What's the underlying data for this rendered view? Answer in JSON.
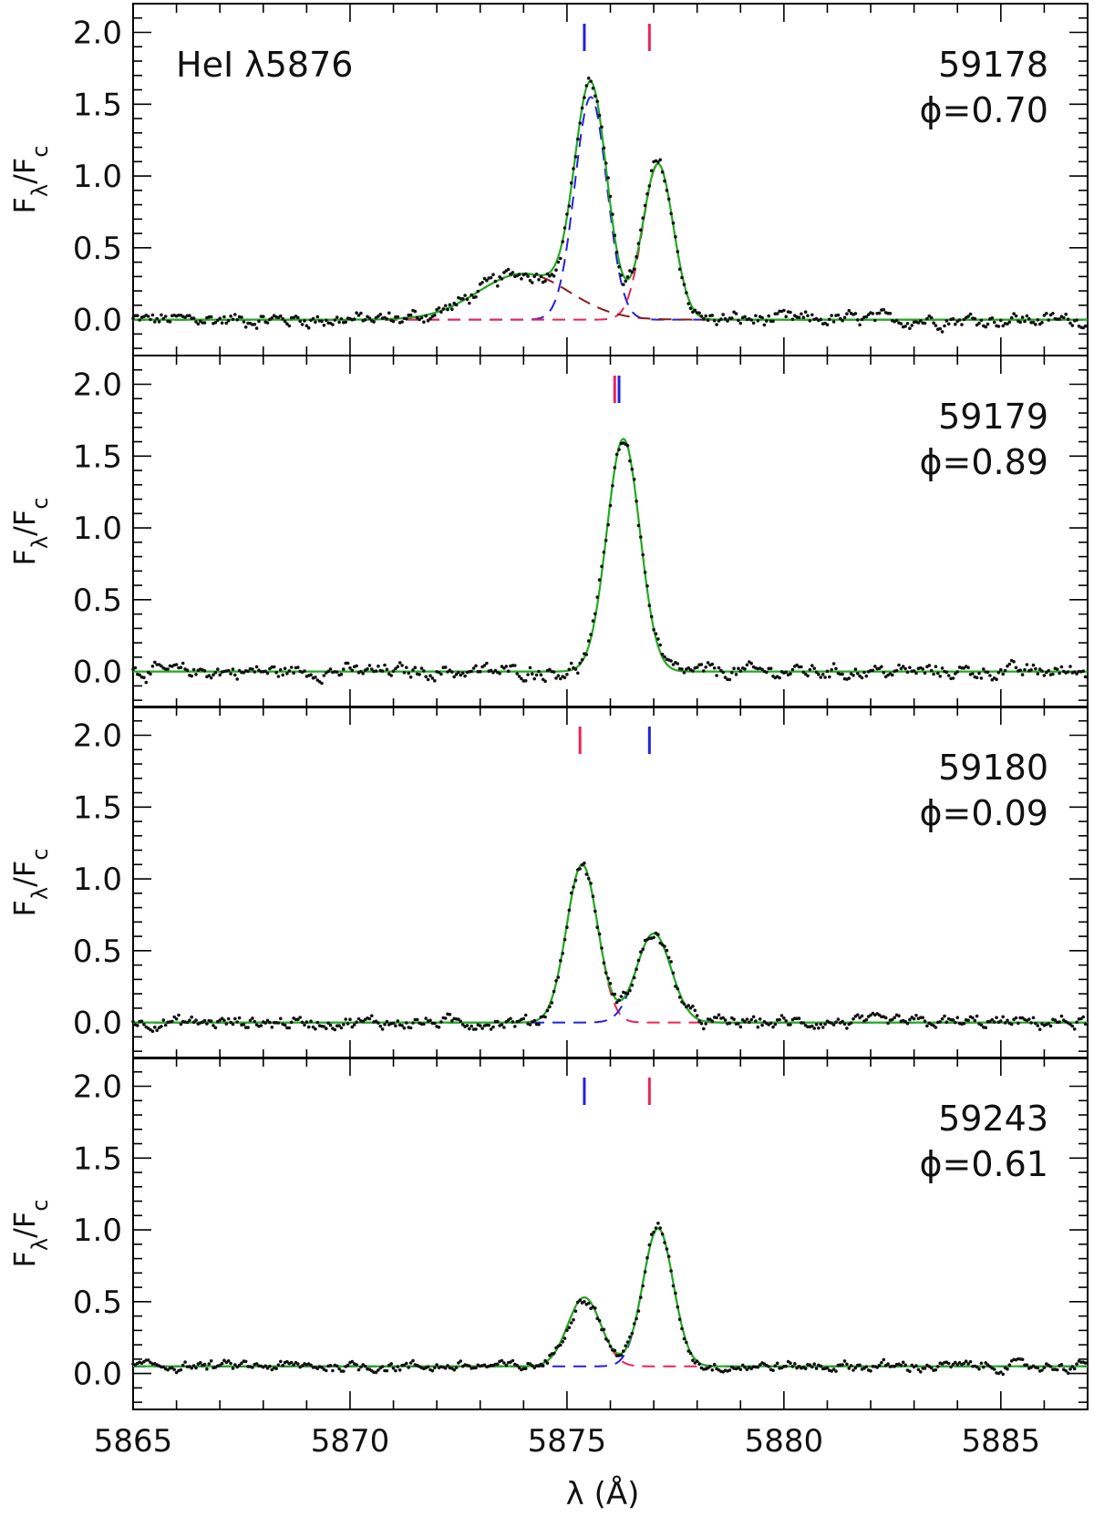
{
  "chart_data": {
    "type": "scatter",
    "title": "HeI λ5876",
    "xlabel": "λ (Å)",
    "ylabel_main": "F",
    "ylabel_sub1": "λ",
    "ylabel_mid": "/F",
    "ylabel_sub2": "c",
    "xlim": [
      5865,
      5887
    ],
    "ylim": [
      -0.25,
      2.2
    ],
    "x_ticks": [
      5865,
      5870,
      5875,
      5880,
      5885
    ],
    "y_ticks": [
      0.0,
      0.5,
      1.0,
      1.5,
      2.0
    ],
    "y_tick_labels": [
      "0.0",
      "0.5",
      "1.0",
      "1.5",
      "2.0"
    ],
    "colors": {
      "observed": "#111111",
      "fit_total": "#22aa22",
      "component_blue": "#2222dd",
      "component_red": "#ee2255",
      "component_broad": "#8b1a1a"
    },
    "panels": [
      {
        "label_date": "59178",
        "label_phase": "ϕ=0.70",
        "baseline": 0.0,
        "markers": [
          {
            "x": 5875.4,
            "color": "blue"
          },
          {
            "x": 5876.9,
            "color": "red"
          }
        ],
        "components": [
          {
            "name": "blue",
            "amp": 1.55,
            "center": 5875.55,
            "sigma": 0.37
          },
          {
            "name": "red",
            "amp": 1.08,
            "center": 5877.1,
            "sigma": 0.35
          },
          {
            "name": "broad",
            "amp": 0.32,
            "center": 5874.0,
            "sigma": 1.05
          }
        ],
        "noise": 0.035
      },
      {
        "label_date": "59179",
        "label_phase": "ϕ=0.89",
        "baseline": 0.0,
        "markers": [
          {
            "x": 5876.1,
            "color": "red"
          },
          {
            "x": 5876.2,
            "color": "blue"
          }
        ],
        "components": [
          {
            "name": "total",
            "amp": 1.62,
            "center": 5876.3,
            "sigma": 0.38
          }
        ],
        "noise": 0.035
      },
      {
        "label_date": "59180",
        "label_phase": "ϕ=0.09",
        "baseline": 0.0,
        "markers": [
          {
            "x": 5875.3,
            "color": "red"
          },
          {
            "x": 5876.9,
            "color": "blue"
          }
        ],
        "components": [
          {
            "name": "red",
            "amp": 1.1,
            "center": 5875.35,
            "sigma": 0.36
          },
          {
            "name": "blue",
            "amp": 0.62,
            "center": 5877.0,
            "sigma": 0.4
          }
        ],
        "noise": 0.03
      },
      {
        "label_date": "59243",
        "label_phase": "ϕ=0.61",
        "baseline": 0.05,
        "markers": [
          {
            "x": 5875.4,
            "color": "blue"
          },
          {
            "x": 5876.9,
            "color": "red"
          }
        ],
        "components": [
          {
            "name": "red",
            "amp": 0.48,
            "center": 5875.4,
            "sigma": 0.38
          },
          {
            "name": "blue",
            "amp": 0.96,
            "center": 5877.1,
            "sigma": 0.35
          }
        ],
        "noise": 0.025
      }
    ]
  }
}
